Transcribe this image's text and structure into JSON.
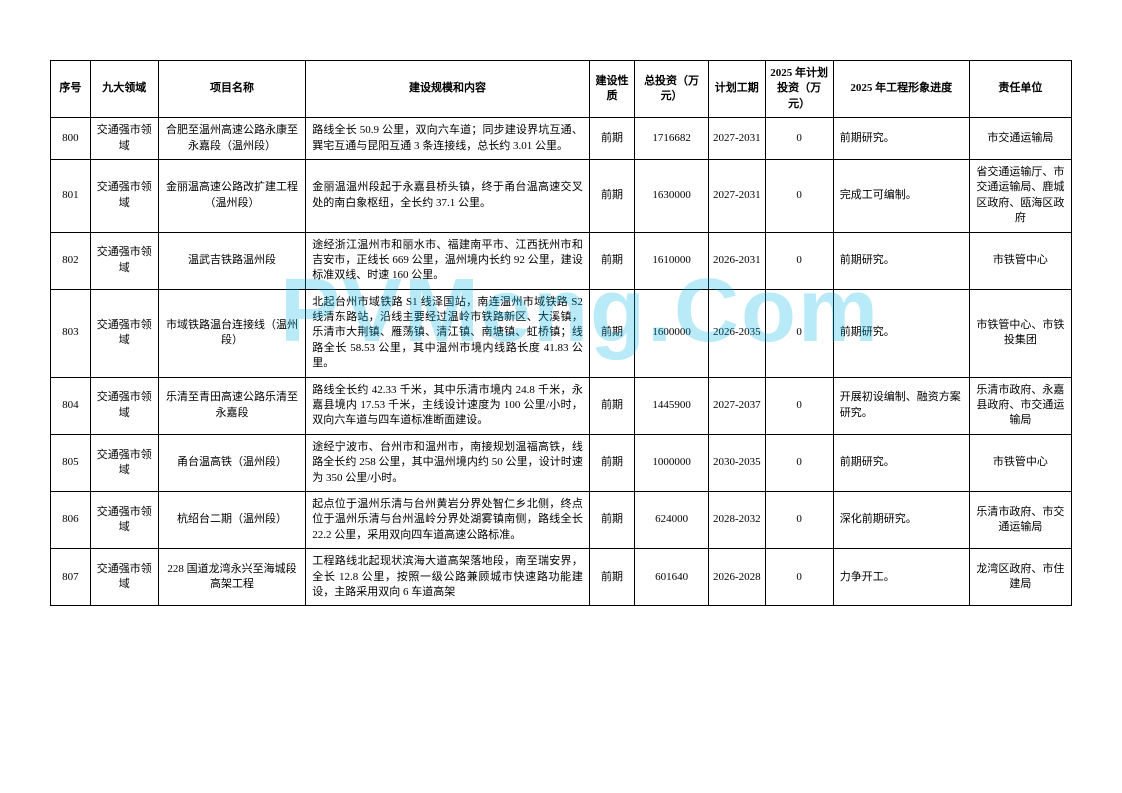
{
  "watermark": "PVMeng.Com",
  "headers": {
    "seq": "序号",
    "domain": "九大领域",
    "name": "项目名称",
    "content": "建设规模和内容",
    "nature": "建设性质",
    "total": "总投资（万元）",
    "period": "计划工期",
    "plan": "2025 年计划投资（万元）",
    "progress": "2025 年工程形象进度",
    "unit": "责任单位"
  },
  "rows": [
    {
      "seq": "800",
      "domain": "交通强市领域",
      "name": "合肥至温州高速公路永康至永嘉段（温州段）",
      "content": "路线全长 50.9 公里，双向六车道；同步建设界坑互通、巽宅互通与昆阳互通 3 条连接线，总长约 3.01 公里。",
      "nature": "前期",
      "total": "1716682",
      "period": "2027-2031",
      "plan": "0",
      "progress": "前期研究。",
      "unit": "市交通运输局"
    },
    {
      "seq": "801",
      "domain": "交通强市领域",
      "name": "金丽温高速公路改扩建工程（温州段）",
      "content": "金丽温温州段起于永嘉县桥头镇，终于甬台温高速交叉处的南白象枢纽，全长约 37.1 公里。",
      "nature": "前期",
      "total": "1630000",
      "period": "2027-2031",
      "plan": "0",
      "progress": "完成工可编制。",
      "unit": "省交通运输厅、市交通运输局、鹿城区政府、瓯海区政府"
    },
    {
      "seq": "802",
      "domain": "交通强市领域",
      "name": "温武吉铁路温州段",
      "content": "途经浙江温州市和丽水市、福建南平市、江西抚州市和吉安市，正线长 669 公里，温州境内长约 92 公里，建设标准双线、时速 160 公里。",
      "nature": "前期",
      "total": "1610000",
      "period": "2026-2031",
      "plan": "0",
      "progress": "前期研究。",
      "unit": "市铁管中心"
    },
    {
      "seq": "803",
      "domain": "交通强市领域",
      "name": "市域铁路温台连接线（温州段）",
      "content": "北起台州市域铁路 S1 线泽国站，南连温州市域铁路 S2 线清东路站，沿线主要经过温岭市铁路新区、大溪镇，乐清市大荆镇、雁荡镇、清江镇、南塘镇、虹桥镇；线路全长 58.53 公里，其中温州市境内线路长度 41.83 公里。",
      "nature": "前期",
      "total": "1600000",
      "period": "2026-2035",
      "plan": "0",
      "progress": "前期研究。",
      "unit": "市铁管中心、市铁投集团"
    },
    {
      "seq": "804",
      "domain": "交通强市领域",
      "name": "乐清至青田高速公路乐清至永嘉段",
      "content": "路线全长约 42.33 千米，其中乐清市境内 24.8 千米，永嘉县境内 17.53 千米，主线设计速度为 100 公里/小时，双向六车道与四车道标准断面建设。",
      "nature": "前期",
      "total": "1445900",
      "period": "2027-2037",
      "plan": "0",
      "progress": "开展初设编制、融资方案研究。",
      "unit": "乐清市政府、永嘉县政府、市交通运输局"
    },
    {
      "seq": "805",
      "domain": "交通强市领域",
      "name": "甬台温高铁（温州段）",
      "content": "途经宁波市、台州市和温州市，南接规划温福高铁，线路全长约 258 公里，其中温州境内约 50 公里，设计时速为 350 公里/小时。",
      "nature": "前期",
      "total": "1000000",
      "period": "2030-2035",
      "plan": "0",
      "progress": "前期研究。",
      "unit": "市铁管中心"
    },
    {
      "seq": "806",
      "domain": "交通强市领域",
      "name": "杭绍台二期（温州段）",
      "content": "起点位于温州乐清与台州黄岩分界处智仁乡北侧，终点位于温州乐清与台州温岭分界处湖雾镇南侧，路线全长 22.2 公里，采用双向四车道高速公路标准。",
      "nature": "前期",
      "total": "624000",
      "period": "2028-2032",
      "plan": "0",
      "progress": "深化前期研究。",
      "unit": "乐清市政府、市交通运输局"
    },
    {
      "seq": "807",
      "domain": "交通强市领域",
      "name": "228 国道龙湾永兴至海城段高架工程",
      "content": "工程路线北起现状滨海大道高架落地段，南至瑞安界，全长 12.8 公里，按照一级公路兼顾城市快速路功能建设，主路采用双向 6 车道高架",
      "nature": "前期",
      "total": "601640",
      "period": "2026-2028",
      "plan": "0",
      "progress": "力争开工。",
      "unit": "龙湾区政府、市住建局"
    }
  ]
}
